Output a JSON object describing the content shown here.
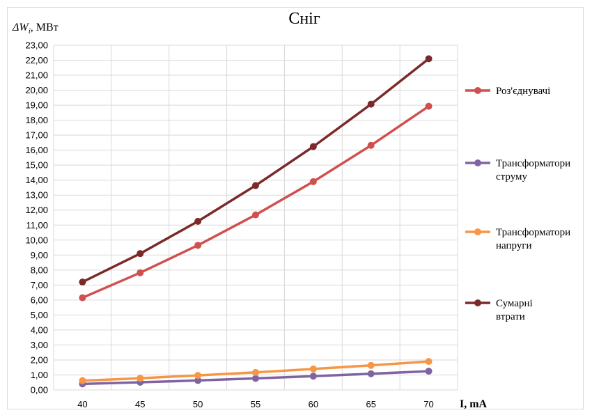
{
  "chart_data": {
    "type": "line",
    "title": "Сніг",
    "ylabel_symbol": "ΔW",
    "ylabel_subscript": "i",
    "ylabel_unit": ", МВт",
    "xlabel": "I, mA",
    "x": [
      40,
      45,
      50,
      55,
      60,
      65,
      70
    ],
    "ylim": [
      0,
      23
    ],
    "ytick_step": 1,
    "ytick_labels": [
      "0,00",
      "1,00",
      "2,00",
      "3,00",
      "4,00",
      "5,00",
      "6,00",
      "7,00",
      "8,00",
      "9,00",
      "10,00",
      "11,00",
      "12,00",
      "13,00",
      "14,00",
      "15,00",
      "16,00",
      "17,00",
      "18,00",
      "19,00",
      "20,00",
      "21,00",
      "22,00",
      "23,00"
    ],
    "xtick_labels": [
      "40",
      "45",
      "50",
      "55",
      "60",
      "65",
      "70"
    ],
    "grid": "both",
    "legend_position": "right",
    "series": [
      {
        "name": "Роз'єднувачі",
        "color": "#d0504f",
        "values": [
          6.15,
          7.82,
          9.65,
          11.68,
          13.9,
          16.32,
          18.93
        ]
      },
      {
        "name": "Трансформатори струму",
        "color": "#8064a2",
        "values": [
          0.4,
          0.51,
          0.63,
          0.77,
          0.92,
          1.08,
          1.25
        ]
      },
      {
        "name": "Трансформатори напруги",
        "color": "#f79646",
        "values": [
          0.62,
          0.78,
          0.97,
          1.17,
          1.4,
          1.64,
          1.9
        ]
      },
      {
        "name": "Сумарні втрати",
        "color": "#7b2a2a",
        "values": [
          7.2,
          9.1,
          11.25,
          13.64,
          16.24,
          19.07,
          22.1
        ]
      }
    ]
  }
}
